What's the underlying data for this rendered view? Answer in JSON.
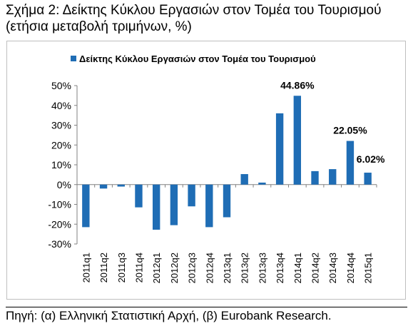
{
  "header": {
    "title": "Σχήμα 2: Δείκτης Κύκλου Εργασιών στον Τομέα του Τουρισμού",
    "subtitle": "(ετήσια μεταβολή τριμήνων, %)"
  },
  "footer": {
    "source": "Πηγή: (α) Ελληνική Στατιστική Αρχή, (β) Eurobank Research."
  },
  "colors": {
    "bar": "#1f6db5",
    "axis": "#808080",
    "grid": "#d9d9d9"
  },
  "chart_data": {
    "type": "bar",
    "title": "",
    "xlabel": "",
    "ylabel": "",
    "legend_position": "top",
    "grid": false,
    "ylim": [
      -30,
      50
    ],
    "yticks": [
      -30,
      -20,
      -10,
      0,
      10,
      20,
      30,
      40,
      50
    ],
    "ytick_labels": [
      "-30%",
      "-20%",
      "-10%",
      "0%",
      "10%",
      "20%",
      "30%",
      "40%",
      "50%"
    ],
    "categories": [
      "2011q1",
      "2011q2",
      "2011q3",
      "2011q4",
      "2012q1",
      "2012q2",
      "2012q3",
      "2012q4",
      "2013q1",
      "2013q2",
      "2013q3",
      "2013q4",
      "2014q1",
      "2014q2",
      "2014q3",
      "2014q4",
      "2015q1"
    ],
    "series": [
      {
        "name": "Δείκτης Κύκλου Εργασιών στον Τομέα του Τουρισμού",
        "values": [
          -21.5,
          -2.0,
          -1.0,
          -11.5,
          -22.8,
          -20.5,
          -11.0,
          -21.5,
          -16.5,
          5.3,
          1.0,
          36.0,
          44.86,
          6.8,
          7.8,
          22.05,
          6.02
        ]
      }
    ],
    "annotations": [
      {
        "category": "2014q1",
        "text": "44.86%"
      },
      {
        "category": "2014q4",
        "text": "22.05%"
      },
      {
        "category": "2015q1",
        "text": "6.02%"
      }
    ]
  }
}
